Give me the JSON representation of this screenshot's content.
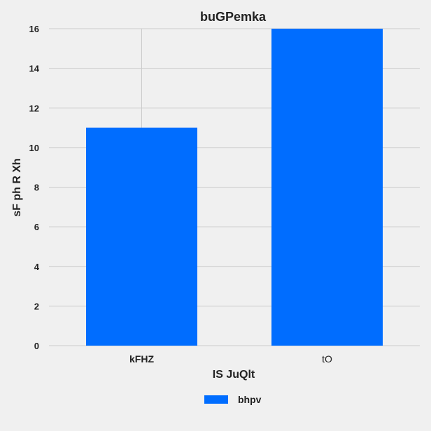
{
  "chart_data": {
    "type": "bar",
    "title": "buGPemka",
    "xlabel": "IS JuQlt",
    "ylabel": "sF  ph R Xh",
    "categories": [
      "kFHZ",
      "tO"
    ],
    "series": [
      {
        "name": "bhpv",
        "values": [
          11,
          16
        ],
        "color": "#006dff"
      }
    ],
    "ylim": [
      0,
      16
    ],
    "yticks": [
      0,
      2,
      4,
      6,
      8,
      10,
      12,
      14,
      16
    ],
    "grid": true,
    "legend_position": "bottom-center"
  }
}
